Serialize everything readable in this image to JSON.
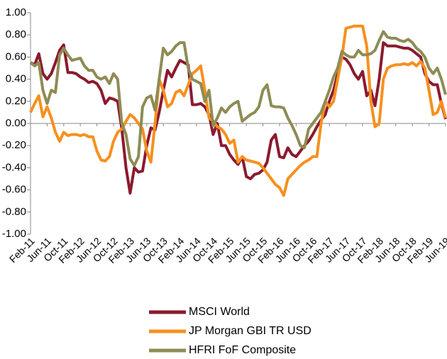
{
  "chart_data": {
    "type": "line",
    "categories": [
      "Feb-11",
      null,
      null,
      null,
      "Jun-11",
      null,
      null,
      null,
      "Oct-11",
      null,
      null,
      null,
      "Feb-12",
      null,
      null,
      null,
      "Jun-12",
      null,
      null,
      null,
      "Oct-12",
      null,
      null,
      null,
      "Feb-13",
      null,
      null,
      null,
      "Jun-13",
      null,
      null,
      null,
      "Oct-13",
      null,
      null,
      null,
      "Feb-14",
      null,
      null,
      null,
      "Jun-14",
      null,
      null,
      null,
      "Oct-14",
      null,
      null,
      null,
      "Feb-15",
      null,
      null,
      null,
      "Jun-15",
      null,
      null,
      null,
      "Oct-15",
      null,
      null,
      null,
      "Feb-16",
      null,
      null,
      null,
      "Jun-16",
      null,
      null,
      null,
      "Oct-16",
      null,
      null,
      null,
      "Feb-17",
      null,
      null,
      null,
      "Jun-17",
      null,
      null,
      null,
      "Oct-17",
      null,
      null,
      null,
      "Feb-18",
      null,
      null,
      null,
      "Jun-18",
      null,
      null,
      null,
      "Oct-18",
      null,
      null,
      null,
      "Feb-19",
      null,
      null,
      null,
      "Jun-19"
    ],
    "series": [
      {
        "name": "MSCI World",
        "color": "#8b1a2e",
        "values": [
          0.55,
          0.53,
          0.63,
          0.45,
          0.4,
          0.45,
          0.55,
          0.66,
          0.71,
          0.46,
          0.46,
          0.45,
          0.42,
          0.4,
          0.37,
          0.38,
          0.36,
          0.3,
          0.18,
          0.23,
          0.22,
          0.2,
          -0.05,
          -0.4,
          -0.63,
          -0.4,
          -0.44,
          -0.43,
          -0.2,
          -0.04,
          -0.06,
          0.1,
          0.3,
          0.48,
          0.42,
          0.5,
          0.57,
          0.55,
          0.53,
          0.17,
          0.17,
          0.18,
          0.15,
          0.08,
          -0.1,
          0.0,
          -0.2,
          -0.2,
          -0.28,
          -0.33,
          -0.37,
          -0.3,
          -0.48,
          -0.5,
          -0.46,
          -0.45,
          -0.42,
          -0.35,
          -0.15,
          -0.1,
          -0.3,
          -0.31,
          -0.22,
          -0.28,
          -0.3,
          -0.25,
          -0.2,
          -0.16,
          -0.1,
          -0.03,
          0.03,
          0.08,
          0.2,
          0.3,
          0.45,
          0.6,
          0.58,
          0.53,
          0.45,
          0.4,
          0.47,
          0.25,
          0.3,
          0.16,
          0.4,
          0.73,
          0.7,
          0.7,
          0.7,
          0.69,
          0.68,
          0.68,
          0.66,
          0.63,
          0.6,
          0.45,
          0.38,
          0.35,
          0.35,
          0.18,
          0.04
        ]
      },
      {
        "name": "JP Morgan GBI TR USD",
        "color": "#f7901e",
        "values": [
          0.1,
          0.18,
          0.25,
          0.06,
          0.15,
          0.05,
          -0.08,
          -0.16,
          -0.08,
          -0.11,
          -0.1,
          -0.1,
          -0.11,
          -0.1,
          -0.12,
          -0.12,
          -0.25,
          -0.33,
          -0.34,
          -0.3,
          -0.16,
          -0.08,
          -0.05,
          0.02,
          0.08,
          0.05,
          0.0,
          -0.05,
          -0.25,
          -0.35,
          0.0,
          0.4,
          0.3,
          0.15,
          0.18,
          0.28,
          0.3,
          0.25,
          0.35,
          0.45,
          0.48,
          0.52,
          0.3,
          0.05,
          0.02,
          -0.03,
          -0.05,
          -0.1,
          -0.18,
          -0.15,
          -0.35,
          -0.3,
          -0.33,
          -0.34,
          -0.35,
          -0.36,
          -0.4,
          -0.45,
          -0.5,
          -0.55,
          -0.58,
          -0.65,
          -0.5,
          -0.46,
          -0.42,
          -0.38,
          -0.35,
          -0.33,
          -0.3,
          -0.3,
          0.0,
          0.2,
          0.15,
          0.2,
          0.4,
          0.6,
          0.86,
          0.87,
          0.88,
          0.88,
          0.88,
          0.7,
          0.2,
          -0.03,
          0.0,
          0.4,
          0.5,
          0.52,
          0.53,
          0.53,
          0.54,
          0.53,
          0.55,
          0.52,
          0.56,
          0.5,
          0.3,
          0.08,
          0.1,
          0.2,
          0.05
        ]
      },
      {
        "name": "HFRI FoF Composite",
        "color": "#8e8c55",
        "values": [
          0.55,
          0.52,
          0.55,
          0.3,
          0.18,
          0.3,
          0.28,
          0.62,
          0.68,
          0.62,
          0.57,
          0.58,
          0.59,
          0.52,
          0.48,
          0.48,
          0.42,
          0.4,
          0.42,
          0.36,
          0.45,
          0.4,
          0.0,
          -0.1,
          -0.32,
          -0.38,
          -0.3,
          0.15,
          0.23,
          0.25,
          0.12,
          0.4,
          0.68,
          0.62,
          0.65,
          0.7,
          0.73,
          0.73,
          0.5,
          0.4,
          0.38,
          0.36,
          0.2,
          0.3,
          -0.02,
          0.05,
          0.14,
          0.1,
          0.15,
          0.18,
          0.2,
          0.02,
          0.05,
          0.08,
          0.1,
          0.15,
          0.3,
          0.35,
          0.16,
          0.15,
          0.15,
          0.14,
          0.05,
          -0.02,
          -0.1,
          -0.2,
          -0.22,
          -0.05,
          0.0,
          0.05,
          0.1,
          0.2,
          0.3,
          0.42,
          0.5,
          0.65,
          0.62,
          0.6,
          0.6,
          0.66,
          0.62,
          0.62,
          0.63,
          0.66,
          0.75,
          0.83,
          0.78,
          0.77,
          0.77,
          0.75,
          0.74,
          0.76,
          0.73,
          0.68,
          0.65,
          0.6,
          0.5,
          0.45,
          0.5,
          0.4,
          0.26
        ]
      }
    ],
    "ylim": [
      -1,
      1
    ],
    "yticks": [
      {
        "value": -1,
        "label": "-1.00"
      },
      {
        "value": -0.8,
        "label": "-0.80"
      },
      {
        "value": -0.6,
        "label": "-0.60"
      },
      {
        "value": -0.4,
        "label": "-0.40"
      },
      {
        "value": -0.2,
        "label": "-0.20"
      },
      {
        "value": 0,
        "label": "0.00"
      },
      {
        "value": 0.2,
        "label": "0.20"
      },
      {
        "value": 0.4,
        "label": "0.40"
      },
      {
        "value": 0.6,
        "label": "0.60"
      },
      {
        "value": 0.8,
        "label": "0.80"
      },
      {
        "value": 1,
        "label": "1.00"
      }
    ],
    "grid": false,
    "legend": "bottom"
  }
}
